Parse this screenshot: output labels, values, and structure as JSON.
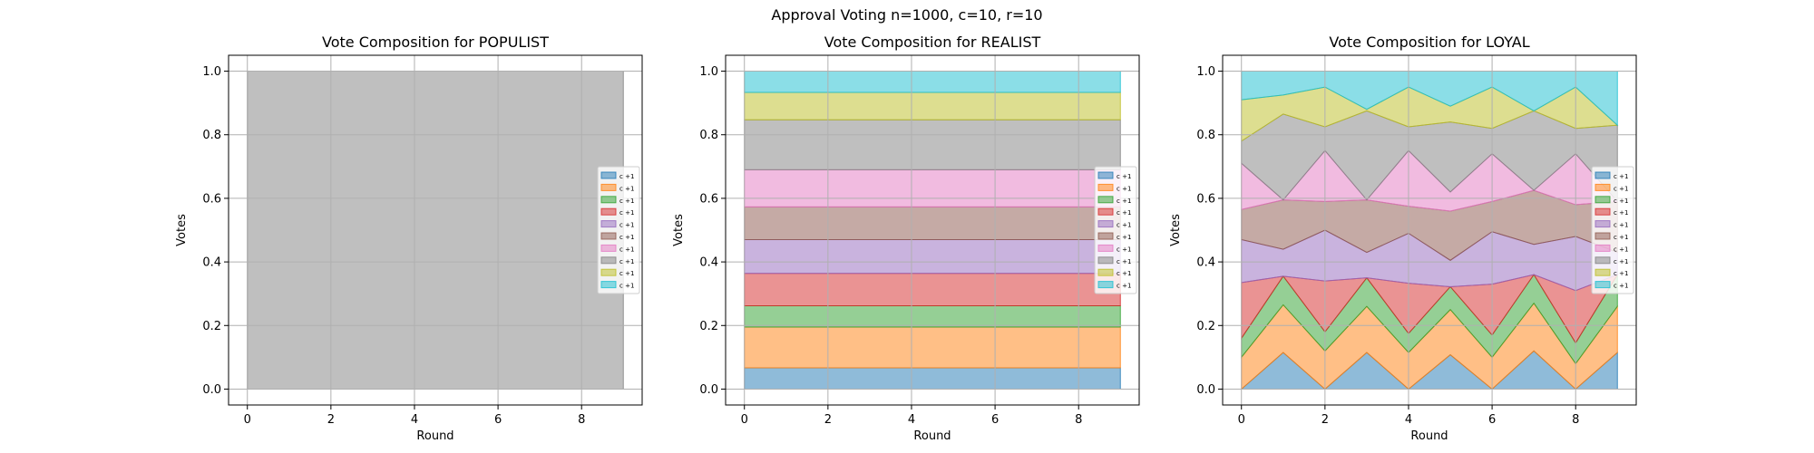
{
  "figure": {
    "suptitle": "Approval Voting n=1000, c=10, r=10"
  },
  "colors": {
    "series": [
      "#1f77b4",
      "#ff7f0e",
      "#2ca02c",
      "#d62728",
      "#9467bd",
      "#8c564b",
      "#e377c2",
      "#7f7f7f",
      "#bcbd22",
      "#17becf"
    ],
    "grid": "#b0b0b0",
    "axes": "#000000"
  },
  "chart_data": [
    {
      "type": "area",
      "stacked": true,
      "title": "Vote Composition for POPULIST",
      "xlabel": "Round",
      "ylabel": "Votes",
      "xlim": [
        -0.45,
        9.45
      ],
      "ylim": [
        -0.05,
        1.05
      ],
      "xticks": [
        "0",
        "2",
        "4",
        "6",
        "8"
      ],
      "yticks": [
        "0.0",
        "0.2",
        "0.4",
        "0.6",
        "0.8",
        "1.0"
      ],
      "grid": true,
      "legend_position": "center-right",
      "x": [
        0,
        1,
        2,
        3,
        4,
        5,
        6,
        7,
        8,
        9
      ],
      "series": [
        {
          "name": "c +1",
          "values": [
            0,
            0,
            0,
            0,
            0,
            0,
            0,
            0,
            0,
            0
          ]
        },
        {
          "name": "c +1",
          "values": [
            0,
            0,
            0,
            0,
            0,
            0,
            0,
            0,
            0,
            0
          ]
        },
        {
          "name": "c +1",
          "values": [
            0,
            0,
            0,
            0,
            0,
            0,
            0,
            0,
            0,
            0
          ]
        },
        {
          "name": "c +1",
          "values": [
            0,
            0,
            0,
            0,
            0,
            0,
            0,
            0,
            0,
            0
          ]
        },
        {
          "name": "c +1",
          "values": [
            0,
            0,
            0,
            0,
            0,
            0,
            0,
            0,
            0,
            0
          ]
        },
        {
          "name": "c +1",
          "values": [
            0,
            0,
            0,
            0,
            0,
            0,
            0,
            0,
            0,
            0
          ]
        },
        {
          "name": "c +1",
          "values": [
            0,
            0,
            0,
            0,
            0,
            0,
            0,
            0,
            0,
            0
          ]
        },
        {
          "name": "c +1",
          "values": [
            1,
            1,
            1,
            1,
            1,
            1,
            1,
            1,
            1,
            1
          ]
        },
        {
          "name": "c +1",
          "values": [
            0,
            0,
            0,
            0,
            0,
            0,
            0,
            0,
            0,
            0
          ]
        },
        {
          "name": "c +1",
          "values": [
            0,
            0,
            0,
            0,
            0,
            0,
            0,
            0,
            0,
            0
          ]
        }
      ]
    },
    {
      "type": "area",
      "stacked": true,
      "title": "Vote Composition for REALIST",
      "xlabel": "Round",
      "ylabel": "Votes",
      "xlim": [
        -0.45,
        9.45
      ],
      "ylim": [
        -0.05,
        1.05
      ],
      "xticks": [
        "0",
        "2",
        "4",
        "6",
        "8"
      ],
      "yticks": [
        "0.0",
        "0.2",
        "0.4",
        "0.6",
        "0.8",
        "1.0"
      ],
      "grid": true,
      "legend_position": "center-right",
      "x": [
        0,
        1,
        2,
        3,
        4,
        5,
        6,
        7,
        8,
        9
      ],
      "series": [
        {
          "name": "c +1",
          "values": [
            0.067,
            0.067,
            0.067,
            0.067,
            0.067,
            0.067,
            0.067,
            0.067,
            0.067,
            0.067
          ]
        },
        {
          "name": "c +1",
          "values": [
            0.128,
            0.128,
            0.128,
            0.128,
            0.128,
            0.128,
            0.128,
            0.128,
            0.128,
            0.128
          ]
        },
        {
          "name": "c +1",
          "values": [
            0.067,
            0.067,
            0.067,
            0.067,
            0.067,
            0.067,
            0.067,
            0.067,
            0.067,
            0.067
          ]
        },
        {
          "name": "c +1",
          "values": [
            0.102,
            0.102,
            0.102,
            0.102,
            0.102,
            0.102,
            0.102,
            0.102,
            0.102,
            0.102
          ]
        },
        {
          "name": "c +1",
          "values": [
            0.106,
            0.106,
            0.106,
            0.106,
            0.106,
            0.106,
            0.106,
            0.106,
            0.106,
            0.106
          ]
        },
        {
          "name": "c +1",
          "values": [
            0.103,
            0.103,
            0.103,
            0.103,
            0.103,
            0.103,
            0.103,
            0.103,
            0.103,
            0.103
          ]
        },
        {
          "name": "c +1",
          "values": [
            0.117,
            0.117,
            0.117,
            0.117,
            0.117,
            0.117,
            0.117,
            0.117,
            0.117,
            0.117
          ]
        },
        {
          "name": "c +1",
          "values": [
            0.157,
            0.157,
            0.157,
            0.157,
            0.157,
            0.157,
            0.157,
            0.157,
            0.157,
            0.157
          ]
        },
        {
          "name": "c +1",
          "values": [
            0.086,
            0.086,
            0.086,
            0.086,
            0.086,
            0.086,
            0.086,
            0.086,
            0.086,
            0.086
          ]
        },
        {
          "name": "c +1",
          "values": [
            0.067,
            0.067,
            0.067,
            0.067,
            0.067,
            0.067,
            0.067,
            0.067,
            0.067,
            0.067
          ]
        }
      ]
    },
    {
      "type": "area",
      "stacked": true,
      "title": "Vote Composition for LOYAL",
      "xlabel": "Round",
      "ylabel": "Votes",
      "xlim": [
        -0.45,
        9.45
      ],
      "ylim": [
        -0.05,
        1.05
      ],
      "xticks": [
        "0",
        "2",
        "4",
        "6",
        "8"
      ],
      "yticks": [
        "0.0",
        "0.2",
        "0.4",
        "0.6",
        "0.8",
        "1.0"
      ],
      "grid": true,
      "legend_position": "center-right",
      "x": [
        0,
        1,
        2,
        3,
        4,
        5,
        6,
        7,
        8,
        9
      ],
      "series": [
        {
          "name": "c +1",
          "values": [
            0.0,
            0.115,
            0.0,
            0.115,
            0.0,
            0.108,
            0.0,
            0.12,
            0.0,
            0.115
          ]
        },
        {
          "name": "c +1",
          "values": [
            0.1,
            0.15,
            0.12,
            0.145,
            0.115,
            0.142,
            0.1,
            0.15,
            0.08,
            0.145
          ]
        },
        {
          "name": "c +1",
          "values": [
            0.06,
            0.09,
            0.06,
            0.09,
            0.06,
            0.072,
            0.07,
            0.09,
            0.065,
            0.1
          ]
        },
        {
          "name": "c +1",
          "values": [
            0.175,
            0.0,
            0.16,
            0.0,
            0.158,
            0.0,
            0.16,
            0.0,
            0.165,
            0.0
          ]
        },
        {
          "name": "c +1",
          "values": [
            0.135,
            0.085,
            0.16,
            0.08,
            0.157,
            0.083,
            0.165,
            0.095,
            0.17,
            0.07
          ]
        },
        {
          "name": "c +1",
          "values": [
            0.095,
            0.155,
            0.09,
            0.165,
            0.085,
            0.155,
            0.095,
            0.17,
            0.1,
            0.16
          ]
        },
        {
          "name": "c +1",
          "values": [
            0.145,
            0.0,
            0.16,
            0.0,
            0.175,
            0.06,
            0.15,
            0.0,
            0.16,
            0.0
          ]
        },
        {
          "name": "c +1",
          "values": [
            0.07,
            0.27,
            0.075,
            0.28,
            0.075,
            0.22,
            0.08,
            0.25,
            0.08,
            0.24
          ]
        },
        {
          "name": "c +1",
          "values": [
            0.13,
            0.06,
            0.125,
            0.005,
            0.125,
            0.05,
            0.13,
            0.0,
            0.13,
            0.0
          ]
        },
        {
          "name": "c +1",
          "values": [
            0.09,
            0.075,
            0.05,
            0.12,
            0.05,
            0.11,
            0.05,
            0.125,
            0.05,
            0.17
          ]
        }
      ]
    }
  ]
}
